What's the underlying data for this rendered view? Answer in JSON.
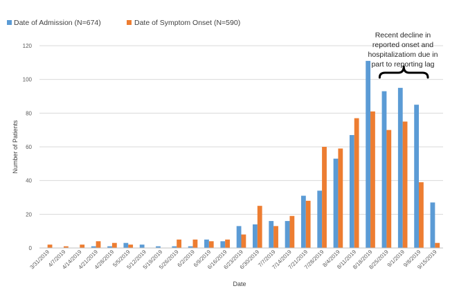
{
  "chart_data": {
    "type": "bar",
    "title": "",
    "xlabel": "Date",
    "ylabel": "Number of Patients",
    "ylim": [
      0,
      120
    ],
    "yticks": [
      0,
      20,
      40,
      60,
      80,
      100,
      120
    ],
    "grid": true,
    "legend_position": "top-left",
    "categories": [
      "3/31/2019",
      "4/7/2019",
      "4/14/2019",
      "4/21/2019",
      "4/28/2019",
      "5/5/2019",
      "5/12/2019",
      "5/19/2019",
      "5/26/2019",
      "6/2/2019",
      "6/9/2019",
      "6/16/2019",
      "6/23/2019",
      "6/30/2019",
      "7/7/2019",
      "7/14/2019",
      "7/21/2019",
      "7/28/2019",
      "8/4/2019",
      "8/11/2019",
      "8/18/2019",
      "8/25/2019",
      "9/1/2019",
      "9/8/2019",
      "9/15/2019"
    ],
    "series": [
      {
        "name": "Date of Admission (N=674)",
        "color": "#5B9BD5",
        "values": [
          0,
          0,
          0,
          1,
          1,
          3,
          2,
          1,
          1,
          1,
          5,
          4,
          13,
          14,
          16,
          16,
          31,
          34,
          53,
          67,
          111,
          93,
          95,
          85,
          27
        ]
      },
      {
        "name": "Date of Symptom Onset  (N=590)",
        "color": "#ED7D31",
        "values": [
          2,
          1,
          2,
          4,
          3,
          2,
          0,
          0,
          5,
          5,
          4,
          5,
          8,
          25,
          13,
          19,
          28,
          60,
          59,
          77,
          81,
          70,
          75,
          39,
          3
        ]
      }
    ],
    "annotation": {
      "lines": [
        "Recent decline in",
        "reported onset and",
        "hospitalizatiom due in",
        "part to reporting lag"
      ],
      "bracket_start": "8/25/2019",
      "bracket_end": "9/8/2019"
    }
  }
}
